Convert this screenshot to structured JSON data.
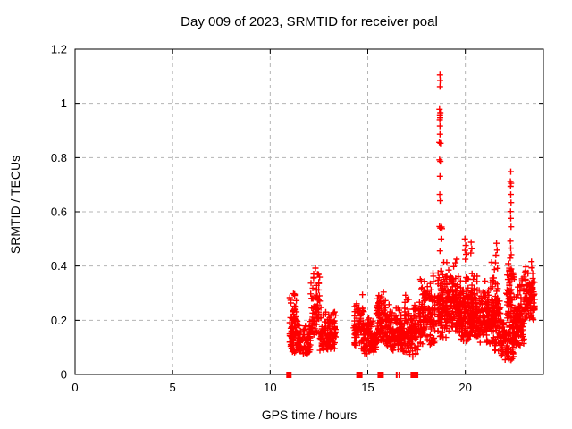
{
  "window": {
    "background": "#ffffff"
  },
  "chart_data": {
    "type": "scatter",
    "title": "Day 009 of 2023, SRMTID for receiver poal",
    "xlabel": "GPS time / hours",
    "ylabel": "SRMTID / TECUs",
    "xlim": [
      0,
      24
    ],
    "ylim": [
      0,
      1.2
    ],
    "xticks": [
      0,
      5,
      10,
      15,
      20
    ],
    "yticks": [
      0,
      0.2,
      0.4,
      0.6,
      0.8,
      1,
      1.2
    ],
    "grid": {
      "visible": true,
      "style": "dashed",
      "position": "major-ticks"
    },
    "legend": "none",
    "marker": {
      "shape": "plus",
      "size": 7,
      "stroke_width": 1.4
    },
    "colors": {
      "marker": "#ff0000",
      "grid": "#b4b4b4",
      "border": "#000000",
      "text": "#000000"
    },
    "seed": 1234,
    "column_step_hours": 0.05,
    "clusters": [
      {
        "x0": 11.0,
        "x1": 11.4,
        "n": 55,
        "y0": 0.13,
        "y1": 0.31
      },
      {
        "x0": 11.0,
        "x1": 12.1,
        "n": 110,
        "y0": 0.075,
        "y1": 0.21
      },
      {
        "x0": 12.08,
        "x1": 12.55,
        "n": 75,
        "y0": 0.14,
        "y1": 0.4
      },
      {
        "x0": 12.5,
        "x1": 13.35,
        "n": 110,
        "y0": 0.08,
        "y1": 0.26
      },
      {
        "x0": 14.28,
        "x1": 14.8,
        "n": 65,
        "y0": 0.09,
        "y1": 0.3
      },
      {
        "x0": 14.75,
        "x1": 15.45,
        "n": 100,
        "y0": 0.07,
        "y1": 0.22
      },
      {
        "x0": 15.45,
        "x1": 15.95,
        "n": 85,
        "y0": 0.1,
        "y1": 0.33
      },
      {
        "x0": 15.9,
        "x1": 16.85,
        "n": 120,
        "y0": 0.08,
        "y1": 0.27
      },
      {
        "x0": 16.85,
        "x1": 17.65,
        "n": 115,
        "y0": 0.06,
        "y1": 0.3
      },
      {
        "x0": 17.65,
        "x1": 18.5,
        "n": 125,
        "y0": 0.1,
        "y1": 0.4
      },
      {
        "x0": 18.55,
        "x1": 19.05,
        "n": 100,
        "y0": 0.13,
        "y1": 0.44
      },
      {
        "x0": 19.05,
        "x1": 19.65,
        "n": 115,
        "y0": 0.15,
        "y1": 0.43
      },
      {
        "x0": 19.65,
        "x1": 20.2,
        "n": 105,
        "y0": 0.12,
        "y1": 0.38
      },
      {
        "x0": 20.2,
        "x1": 20.65,
        "n": 110,
        "y0": 0.12,
        "y1": 0.4
      },
      {
        "x0": 20.65,
        "x1": 21.35,
        "n": 115,
        "y0": 0.1,
        "y1": 0.36
      },
      {
        "x0": 21.35,
        "x1": 21.8,
        "n": 95,
        "y0": 0.08,
        "y1": 0.44
      },
      {
        "x0": 21.8,
        "x1": 22.5,
        "n": 85,
        "y0": 0.05,
        "y1": 0.24
      },
      {
        "x0": 22.1,
        "x1": 22.45,
        "n": 60,
        "y0": 0.15,
        "y1": 0.46
      },
      {
        "x0": 22.45,
        "x1": 23.05,
        "n": 105,
        "y0": 0.1,
        "y1": 0.38
      },
      {
        "x0": 23.05,
        "x1": 23.56,
        "n": 95,
        "y0": 0.2,
        "y1": 0.42
      }
    ],
    "notable_points": [
      [
        18.7,
        1.105
      ],
      [
        18.71,
        1.085
      ],
      [
        18.7,
        1.062
      ],
      [
        18.68,
        0.978
      ],
      [
        18.72,
        0.966
      ],
      [
        18.7,
        0.955
      ],
      [
        18.71,
        0.947
      ],
      [
        18.69,
        0.94
      ],
      [
        18.7,
        0.916
      ],
      [
        18.7,
        0.886
      ],
      [
        18.67,
        0.856
      ],
      [
        18.73,
        0.853
      ],
      [
        18.68,
        0.792
      ],
      [
        18.72,
        0.786
      ],
      [
        18.7,
        0.731
      ],
      [
        18.69,
        0.664
      ],
      [
        18.71,
        0.641
      ],
      [
        18.68,
        0.546
      ],
      [
        18.72,
        0.54
      ],
      [
        18.78,
        0.544
      ],
      [
        18.8,
        0.538
      ],
      [
        18.76,
        0.5
      ],
      [
        18.7,
        0.456
      ],
      [
        19.98,
        0.5
      ],
      [
        20.02,
        0.476
      ],
      [
        19.99,
        0.458
      ],
      [
        20.04,
        0.443
      ],
      [
        20.0,
        0.425
      ],
      [
        20.3,
        0.488
      ],
      [
        20.33,
        0.464
      ],
      [
        20.28,
        0.448
      ],
      [
        21.6,
        0.484
      ],
      [
        21.63,
        0.459
      ],
      [
        21.57,
        0.44
      ],
      [
        22.33,
        0.748
      ],
      [
        22.31,
        0.712
      ],
      [
        22.34,
        0.705
      ],
      [
        22.32,
        0.694
      ],
      [
        22.33,
        0.664
      ],
      [
        22.34,
        0.634
      ],
      [
        22.32,
        0.601
      ],
      [
        22.33,
        0.576
      ],
      [
        22.34,
        0.545
      ],
      [
        22.31,
        0.492
      ],
      [
        22.33,
        0.466
      ],
      [
        22.35,
        0.442
      ]
    ],
    "zero_markers": [
      {
        "x": 10.96,
        "w": 6
      },
      {
        "x": 14.57,
        "w": 7
      },
      {
        "x": 15.66,
        "w": 7
      },
      {
        "x": 16.48,
        "w": 2
      },
      {
        "x": 16.62,
        "w": 2
      },
      {
        "x": 17.33,
        "w": 6
      },
      {
        "x": 17.5,
        "w": 4
      }
    ]
  }
}
